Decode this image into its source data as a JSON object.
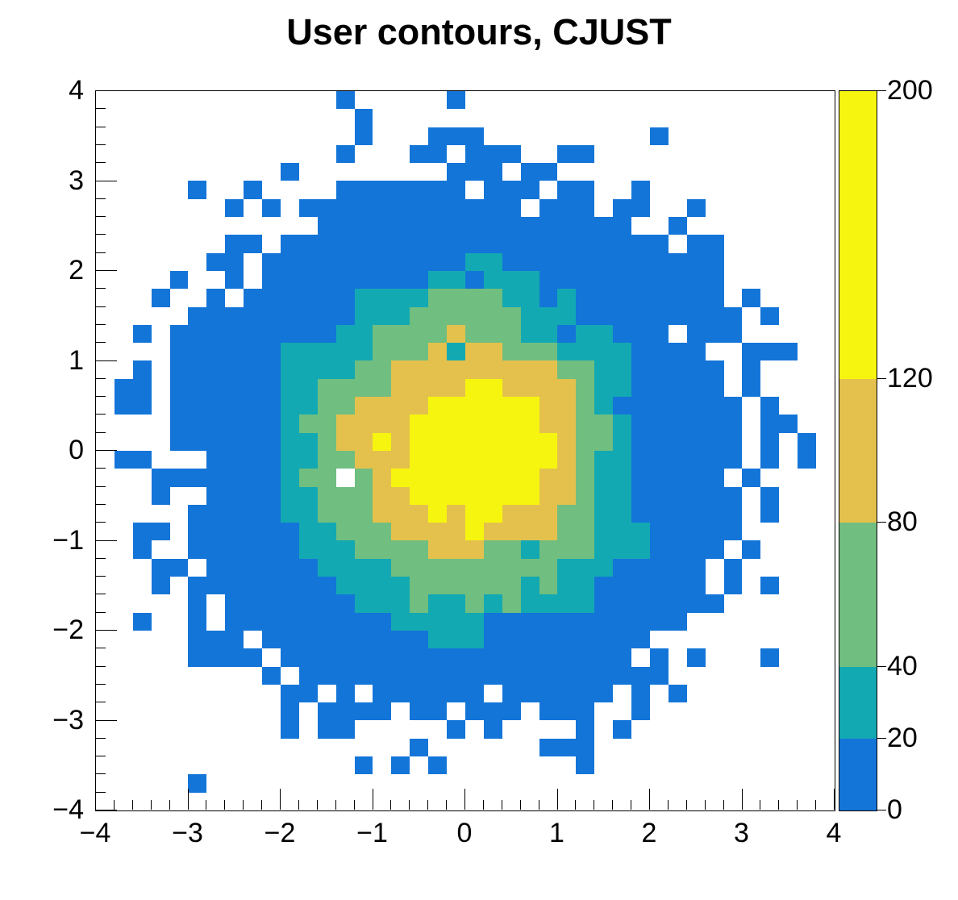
{
  "title": "User contours, CJUST",
  "chart_data": {
    "type": "heatmap",
    "title": "User contours, CJUST",
    "xlabel": "",
    "ylabel": "",
    "x_range": [
      -4,
      4
    ],
    "y_range": [
      -4,
      4
    ],
    "n_bins_x": 40,
    "n_bins_y": 40,
    "bin_width": 0.2,
    "grid_lines": "off",
    "x_tick_labels": [
      "−4",
      "−3",
      "−2",
      "−1",
      "0",
      "1",
      "2",
      "3",
      "4"
    ],
    "y_tick_labels": [
      "4",
      "3",
      "2",
      "1",
      "0",
      "−1",
      "−2",
      "−3",
      "−4"
    ],
    "minor_ticks_per_unit": 5,
    "contour_levels": [
      0,
      20,
      40,
      80,
      120,
      200
    ],
    "level_colors": [
      "#ffffff",
      "#1475d8",
      "#13a9b3",
      "#70be80",
      "#e4c14d",
      "#f6f50f"
    ],
    "level_names": [
      "empty",
      "0-20",
      "20-40",
      "40-80",
      "80-120",
      "120-200"
    ],
    "colorbar": {
      "position": "right",
      "tick_labels": [
        "0",
        "20",
        "40",
        "80",
        "120",
        "200"
      ],
      "tick_values": [
        0,
        20,
        40,
        80,
        120,
        200
      ],
      "value_min": 0,
      "value_max": 200
    },
    "grid_encoding": "40 strings of 40 chars; row 0 = top row (y near +4), col 0 = left (x near -4); char = contour level index into level_colors",
    "grid": [
      "0000000000000100000100000000000000000000",
      "0000000000000010000000000000000000000000",
      "0000000000000010001110000000001000000000",
      "0000000000000100011011100110000000000000",
      "0000000000100000000111011000000000000000",
      "0000010010000111111101110110010000000000",
      "0000000101011111111111101110110010000000",
      "0000000000001111111111111111100100000000",
      "0000000110111111111111111111111011000000",
      "0000001101111111111122111111111111000000",
      "0000100101111111112212221111111111000000",
      "0001001011111122223333221211111111010000",
      "0000011111111122233333322211111111101000",
      "0010111111111223333433322122111011100000",
      "0000111111222223334244333222211110011100",
      "0010111111222233444444444332211111010000",
      "0110111111223333444455444432211111010000",
      "0110111111223344445555554432111111101000",
      "0000111111233444455555554433211111101100",
      "0000111111223445455555555433211111101010",
      "0110001111223344455555555432211111101010",
      "0001111111233034555555554432211111010000",
      "0001001111223334455555554432211111101000",
      "0000011111223334445455444332211111101000",
      "0011011111122333444454444332221111100000",
      "0010011111122233334443323332221111010000",
      "0001101111112222333333333222111110100000",
      "0001011111111222233333323221111110101000",
      "0000010111111122232232322221111111000000",
      "0010010111111111222221111111111100000000",
      "0000011101111111112221111111110000000000",
      "0000011110111111111111111111101010001000",
      "0000000001011111111111111111111000000000",
      "0000000000110101111110111111010100000000",
      "0000000000101111011011101110010000000000",
      "0000000000101100000101000010100000000000",
      "0000000000000000010000001110000000000000",
      "0000000000000010101000000010000000000000",
      "0000010000000000000000000000000000000000",
      "0000000000000000000000000000000000000000"
    ]
  }
}
